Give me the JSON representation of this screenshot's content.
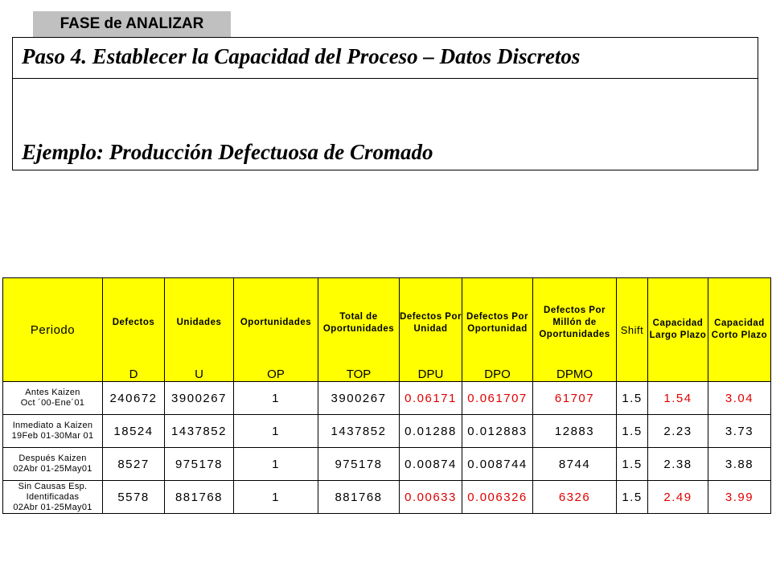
{
  "phase": "FASE de ANALIZAR",
  "title": "Paso 4.  Establecer la Capacidad del Proceso – Datos Discretos",
  "subtitle": "Ejemplo: Producción Defectuosa de Cromado",
  "table": {
    "headers": [
      {
        "label": "Periodo",
        "symbol": ""
      },
      {
        "label": "Defectos",
        "symbol": "D"
      },
      {
        "label": "Unidades",
        "symbol": "U"
      },
      {
        "label": "Oportunidades",
        "symbol": "OP"
      },
      {
        "label": "Total de Oportunidades",
        "symbol": "TOP"
      },
      {
        "label": "Defectos Por Unidad",
        "symbol": "DPU"
      },
      {
        "label": "Defectos Por Oportunidad",
        "symbol": "DPO"
      },
      {
        "label": "Defectos Por Millón de Oportunidades",
        "symbol": "DPMO"
      },
      {
        "label": "Shift",
        "symbol": ""
      },
      {
        "label": "Capacidad Largo Plazo",
        "symbol": ""
      },
      {
        "label": "Capacidad Corto Plazo",
        "symbol": ""
      }
    ],
    "rows": [
      {
        "periodo": "Antes Kaizen\nOct ´00-Ene´01",
        "d": "240672",
        "u": "3900267",
        "op": "1",
        "top": "3900267",
        "dpu": "0.06171",
        "dpo": "0.061707",
        "dpmo": "61707",
        "shift": "1.5",
        "cap_largo": "1.54",
        "cap_corto": "3.04"
      },
      {
        "periodo": "Inmediato a Kaizen\n19Feb 01-30Mar 01",
        "d": "18524",
        "u": "1437852",
        "op": "1",
        "top": "1437852",
        "dpu": "0.01288",
        "dpo": "0.012883",
        "dpmo": "12883",
        "shift": "1.5",
        "cap_largo": "2.23",
        "cap_corto": "3.73"
      },
      {
        "periodo": "Después Kaizen\n02Abr 01-25May01",
        "d": "8527",
        "u": "975178",
        "op": "1",
        "top": "975178",
        "dpu": "0.00874",
        "dpo": "0.008744",
        "dpmo": "8744",
        "shift": "1.5",
        "cap_largo": "2.38",
        "cap_corto": "3.88"
      },
      {
        "periodo": "Sin Causas Esp.\nIdentificadas\n02Abr 01-25May01",
        "d": "5578",
        "u": "881768",
        "op": "1",
        "top": "881768",
        "dpu": "0.00633",
        "dpo": "0.006326",
        "dpmo": "6326",
        "shift": "1.5",
        "cap_largo": "2.49",
        "cap_corto": "3.99"
      }
    ]
  },
  "colors": {
    "header_bg": "#ffff00",
    "highlight_text": "#e00000",
    "phase_tab_bg": "#c0c0c0"
  }
}
